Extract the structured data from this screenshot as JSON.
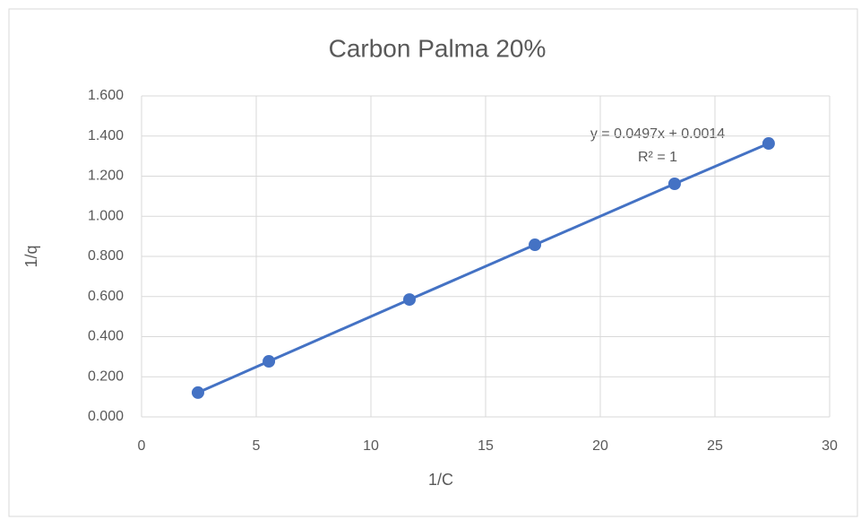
{
  "chart_data": {
    "type": "scatter",
    "title": "Carbon Palma 20%",
    "x_label": "1/C",
    "y_label": "1/q",
    "series": [
      {
        "name": "1/q",
        "color": "#4472c4",
        "x": [
          2.46,
          5.55,
          11.68,
          17.15,
          23.24,
          27.34
        ],
        "values": [
          0.121,
          0.277,
          0.585,
          0.858,
          1.162,
          1.363
        ]
      }
    ],
    "trendline": "linear",
    "annotations": [
      "y = 0.0497x + 0.0014",
      "R² = 1"
    ],
    "xlim": [
      0,
      30
    ],
    "xticks": [
      0,
      5,
      10,
      15,
      20,
      25,
      30
    ],
    "ylim": [
      0,
      1.6
    ],
    "yticks": [
      {
        "value": 0,
        "label": "0.000"
      },
      {
        "value": 0.2,
        "label": "0.200"
      },
      {
        "value": 0.4,
        "label": "0.400"
      },
      {
        "value": 0.6,
        "label": "0.600"
      },
      {
        "value": 0.8,
        "label": "0.800"
      },
      {
        "value": 1.0,
        "label": "1.000"
      },
      {
        "value": 1.2,
        "label": "1.200"
      },
      {
        "value": 1.4,
        "label": "1.400"
      },
      {
        "value": 1.6,
        "label": "1.600"
      }
    ],
    "grid": true
  }
}
